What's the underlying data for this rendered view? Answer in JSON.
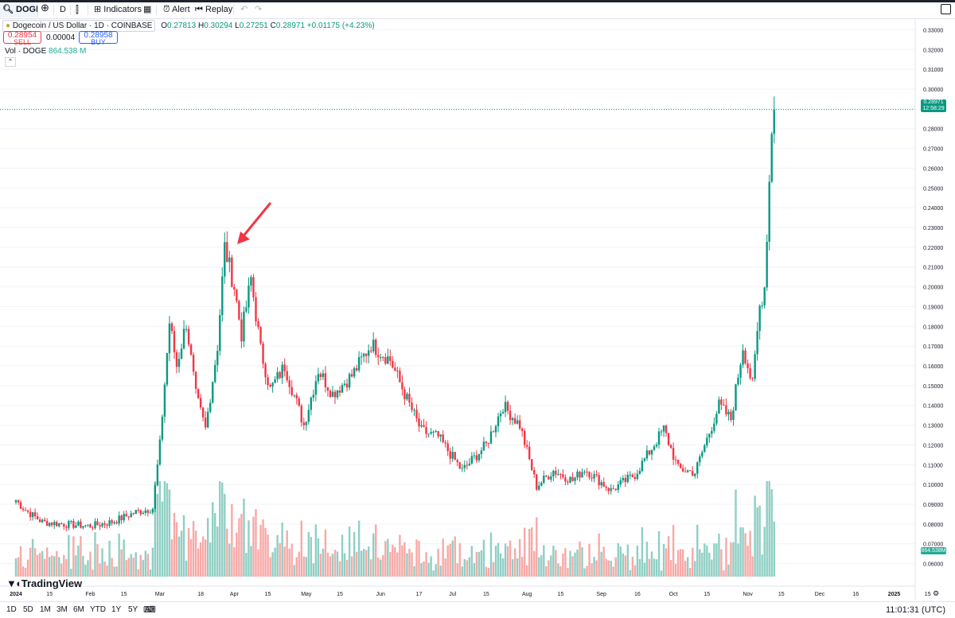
{
  "toolbar": {
    "symbol": "DOGEU",
    "interval": "D",
    "indicators": "Indicators",
    "alert": "Alert",
    "replay": "Replay"
  },
  "legend": {
    "title": "Dogecoin / US Dollar · 1D · COINBASE",
    "open_label": "O",
    "open": "0.27813",
    "high_label": "H",
    "high": "0.30294",
    "low_label": "L",
    "low": "0.27251",
    "close_label": "C",
    "close": "0.28971",
    "change": "+0.01175 (+4.23%)",
    "sell_price": "0.28954",
    "sell_label": "SELL",
    "spread": "0.00004",
    "buy_price": "0.28958",
    "buy_label": "BUY",
    "vol_label": "Vol · DOGE",
    "vol_value": "864.538 M"
  },
  "colors": {
    "up": "#089981",
    "down": "#f23645",
    "vol_up": "#8fcfc4",
    "vol_down": "#f7a9a7",
    "arrow": "#f23645"
  },
  "price_axis": {
    "ticks": [
      "0.33000",
      "0.32000",
      "0.31000",
      "0.30000",
      "0.29000",
      "0.28000",
      "0.27000",
      "0.26000",
      "0.25000",
      "0.24000",
      "0.23000",
      "0.22000",
      "0.21000",
      "0.20000",
      "0.19000",
      "0.18000",
      "0.17000",
      "0.16000",
      "0.15000",
      "0.14000",
      "0.13000",
      "0.12000",
      "0.11000",
      "0.10000",
      "0.09000",
      "0.08000",
      "0.07000",
      "0.06000"
    ],
    "last_price_tag": "0.28971",
    "countdown": "12:58:29",
    "volume_tag": "864.538M"
  },
  "time_axis": {
    "labels": [
      "2024",
      "15",
      "Feb",
      "15",
      "Mar",
      "18",
      "Apr",
      "15",
      "May",
      "15",
      "Jun",
      "17",
      "Jul",
      "15",
      "Aug",
      "15",
      "Sep",
      "16",
      "Oct",
      "15",
      "Nov",
      "15",
      "Dec",
      "16",
      "2025",
      "15"
    ]
  },
  "bottom": {
    "ranges": [
      "1D",
      "5D",
      "1M",
      "3M",
      "6M",
      "YTD",
      "1Y",
      "5Y",
      "All"
    ],
    "clock": "11:01:31 (UTC)"
  },
  "chart_data": {
    "type": "candlestick",
    "x_start": "2024-01-01",
    "interval": "1D",
    "ylim": [
      0.055,
      0.335
    ],
    "waypoints": [
      [
        "2024-01-01",
        0.092
      ],
      [
        "2024-01-05",
        0.087
      ],
      [
        "2024-01-12",
        0.081
      ],
      [
        "2024-01-20",
        0.08
      ],
      [
        "2024-02-01",
        0.079
      ],
      [
        "2024-02-10",
        0.081
      ],
      [
        "2024-02-20",
        0.086
      ],
      [
        "2024-02-27",
        0.088
      ],
      [
        "2024-03-01",
        0.12
      ],
      [
        "2024-03-05",
        0.182
      ],
      [
        "2024-03-08",
        0.16
      ],
      [
        "2024-03-12",
        0.182
      ],
      [
        "2024-03-16",
        0.145
      ],
      [
        "2024-03-20",
        0.128
      ],
      [
        "2024-03-25",
        0.17
      ],
      [
        "2024-03-28",
        0.22
      ],
      [
        "2024-04-01",
        0.2
      ],
      [
        "2024-04-04",
        0.176
      ],
      [
        "2024-04-08",
        0.204
      ],
      [
        "2024-04-12",
        0.168
      ],
      [
        "2024-04-16",
        0.148
      ],
      [
        "2024-04-22",
        0.16
      ],
      [
        "2024-04-30",
        0.13
      ],
      [
        "2024-05-06",
        0.158
      ],
      [
        "2024-05-12",
        0.146
      ],
      [
        "2024-05-20",
        0.155
      ],
      [
        "2024-05-28",
        0.171
      ],
      [
        "2024-06-05",
        0.163
      ],
      [
        "2024-06-12",
        0.143
      ],
      [
        "2024-06-18",
        0.127
      ],
      [
        "2024-06-25",
        0.124
      ],
      [
        "2024-07-05",
        0.107
      ],
      [
        "2024-07-15",
        0.12
      ],
      [
        "2024-07-22",
        0.14
      ],
      [
        "2024-07-29",
        0.13
      ],
      [
        "2024-08-05",
        0.099
      ],
      [
        "2024-08-12",
        0.107
      ],
      [
        "2024-08-20",
        0.102
      ],
      [
        "2024-08-25",
        0.108
      ],
      [
        "2024-09-05",
        0.097
      ],
      [
        "2024-09-15",
        0.105
      ],
      [
        "2024-09-27",
        0.128
      ],
      [
        "2024-10-03",
        0.108
      ],
      [
        "2024-10-10",
        0.106
      ],
      [
        "2024-10-20",
        0.14
      ],
      [
        "2024-10-25",
        0.133
      ],
      [
        "2024-10-30",
        0.17
      ],
      [
        "2024-11-03",
        0.15
      ],
      [
        "2024-11-06",
        0.19
      ],
      [
        "2024-11-08",
        0.2
      ],
      [
        "2024-11-11",
        0.28
      ],
      [
        "2024-11-12",
        0.2897
      ]
    ]
  }
}
